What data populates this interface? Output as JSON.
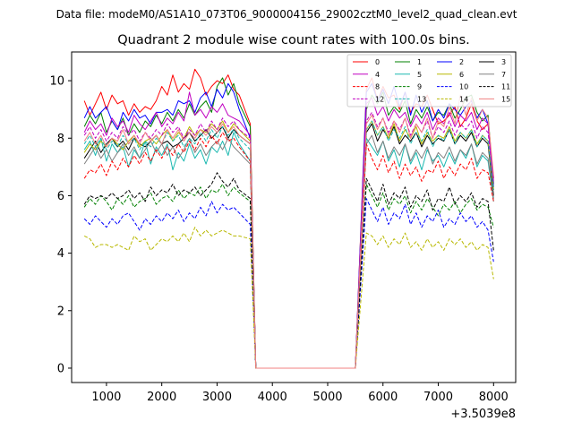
{
  "header": {
    "data_file": "Data file: modeM0/AS1A10_073T06_9000004156_29002cztM0_level2_quad_clean.evt"
  },
  "chart_data": {
    "type": "line",
    "title": "Quadrant 2 module wise count rates with 100.0s bins.",
    "xlabel": "",
    "ylabel": "",
    "x_offset_label": "+3.5039e8",
    "xlim": [
      370,
      8400
    ],
    "ylim": [
      -0.5,
      11.0
    ],
    "xticks": [
      1000,
      2000,
      3000,
      4000,
      5000,
      6000,
      7000,
      8000
    ],
    "yticks": [
      0,
      2,
      4,
      6,
      8,
      10
    ],
    "grid": false,
    "legend": {
      "placement": "top-right",
      "columns": 4
    },
    "gap": {
      "start": 3600,
      "end": 5500
    },
    "x_first": [
      600,
      700,
      800,
      900,
      1000,
      1100,
      1200,
      1300,
      1400,
      1500,
      1600,
      1700,
      1800,
      1900,
      2000,
      2100,
      2200,
      2300,
      2400,
      2500,
      2600,
      2700,
      2800,
      2900,
      3000,
      3100,
      3200,
      3300,
      3400
    ],
    "x_second": [
      5700,
      5800,
      5900,
      6000,
      6100,
      6200,
      6300,
      6400,
      6500,
      6600,
      6700,
      6800,
      6900,
      7000,
      7100,
      7200,
      7300,
      7400,
      7500,
      7600,
      7700,
      7800,
      7900,
      8000
    ],
    "series": [
      {
        "name": "0",
        "color": "#ff0000",
        "dash": false,
        "first": [
          9.3,
          8.8,
          9.2,
          9.6,
          9.0,
          9.5,
          9.2,
          9.3,
          8.8,
          9.2,
          8.9,
          9.1,
          9.0,
          9.3,
          9.8,
          9.5,
          10.2,
          9.6,
          9.9,
          9.7,
          10.4,
          10.1,
          9.5,
          9.8,
          10.0,
          9.9,
          10.2,
          9.7,
          9.5
        ],
        "last": 8.5,
        "second": [
          9.7,
          10.1,
          9.3,
          9.8,
          9.4,
          9.5,
          9.0,
          9.6,
          8.9,
          9.2,
          9.1,
          9.5,
          9.0,
          8.5,
          8.6,
          8.8,
          9.1,
          8.4,
          8.7,
          9.2,
          8.6,
          8.3,
          8.5,
          6.6
        ]
      },
      {
        "name": "1",
        "color": "#008000",
        "dash": false,
        "first": [
          8.4,
          8.8,
          8.5,
          8.9,
          8.2,
          8.6,
          8.3,
          8.7,
          8.1,
          8.5,
          8.2,
          8.6,
          8.4,
          8.8,
          8.5,
          8.9,
          8.6,
          9.0,
          8.7,
          9.2,
          8.8,
          9.1,
          9.3,
          8.9,
          9.8,
          10.1,
          9.5,
          9.9,
          9.2
        ],
        "last": 8.4,
        "second": [
          9.0,
          9.5,
          9.2,
          9.6,
          8.8,
          9.1,
          8.9,
          9.3,
          8.5,
          9.0,
          8.7,
          9.1,
          8.6,
          8.9,
          8.8,
          9.2,
          8.7,
          9.0,
          9.4,
          9.5,
          8.9,
          8.6,
          8.8,
          6.4
        ]
      },
      {
        "name": "2",
        "color": "#0000ff",
        "dash": false,
        "first": [
          8.7,
          9.1,
          8.7,
          8.9,
          9.1,
          8.6,
          8.3,
          8.9,
          8.6,
          9.0,
          8.7,
          8.8,
          8.5,
          8.9,
          8.9,
          9.0,
          8.8,
          9.3,
          9.2,
          9.3,
          8.9,
          9.4,
          9.6,
          9.1,
          9.7,
          9.4,
          9.9,
          9.6,
          9.0
        ],
        "last": 8.0,
        "second": [
          9.6,
          9.9,
          9.3,
          9.7,
          9.2,
          9.8,
          9.1,
          9.6,
          8.8,
          9.5,
          8.9,
          9.3,
          8.6,
          9.0,
          8.7,
          9.2,
          9.0,
          8.8,
          9.1,
          9.3,
          8.7,
          9.0,
          8.5,
          6.3
        ]
      },
      {
        "name": "3",
        "color": "#000000",
        "dash": false,
        "first": [
          7.3,
          7.6,
          7.9,
          7.5,
          7.8,
          8.0,
          7.7,
          7.9,
          7.6,
          8.0,
          7.8,
          7.7,
          7.9,
          8.1,
          7.8,
          7.9,
          7.7,
          7.8,
          8.0,
          8.2,
          7.9,
          8.1,
          8.3,
          8.0,
          8.2,
          8.4,
          8.0,
          8.3,
          8.1
        ],
        "last": 7.8,
        "second": [
          8.2,
          8.5,
          7.9,
          8.3,
          8.0,
          8.4,
          7.8,
          8.1,
          7.9,
          8.2,
          7.7,
          8.1,
          7.8,
          8.0,
          7.9,
          8.3,
          7.8,
          8.1,
          7.9,
          8.2,
          7.7,
          8.0,
          7.8,
          6.0
        ]
      },
      {
        "name": "4",
        "color": "#c000c0",
        "dash": false,
        "first": [
          8.2,
          8.6,
          8.3,
          8.5,
          8.1,
          8.7,
          8.4,
          8.6,
          8.2,
          8.8,
          8.5,
          8.3,
          8.6,
          8.9,
          8.4,
          8.7,
          8.5,
          8.9,
          8.6,
          9.6,
          8.8,
          9.0,
          8.7,
          9.1,
          8.9,
          9.2,
          8.8,
          8.7,
          8.6
        ],
        "last": 8.1,
        "second": [
          9.2,
          9.4,
          8.8,
          9.1,
          8.6,
          9.0,
          8.7,
          8.9,
          8.4,
          8.8,
          8.5,
          8.9,
          8.3,
          8.7,
          8.5,
          8.9,
          8.4,
          8.8,
          8.6,
          8.9,
          8.3,
          8.7,
          8.5,
          6.5
        ]
      },
      {
        "name": "5",
        "color": "#1ab8b0",
        "dash": false,
        "first": [
          7.6,
          7.9,
          7.4,
          8.0,
          7.2,
          7.8,
          7.5,
          7.7,
          7.0,
          7.6,
          7.3,
          7.9,
          7.1,
          7.7,
          7.4,
          7.8,
          6.9,
          7.5,
          7.2,
          7.8,
          7.3,
          7.6,
          7.1,
          7.7,
          7.5,
          7.9,
          7.4,
          8.2,
          7.8
        ],
        "last": 7.2,
        "second": [
          8.0,
          7.7,
          7.4,
          7.9,
          7.2,
          7.6,
          7.0,
          7.8,
          7.1,
          7.5,
          6.9,
          7.6,
          7.2,
          7.4,
          7.0,
          7.5,
          7.1,
          7.6,
          7.3,
          7.8,
          7.0,
          7.4,
          7.2,
          5.8
        ]
      },
      {
        "name": "6",
        "color": "#b8b800",
        "dash": false,
        "first": [
          7.5,
          7.8,
          7.6,
          7.9,
          7.7,
          8.0,
          7.8,
          7.6,
          7.9,
          8.1,
          7.7,
          7.9,
          8.0,
          7.8,
          8.1,
          8.3,
          7.9,
          8.2,
          8.0,
          8.4,
          8.1,
          8.3,
          8.2,
          8.5,
          8.3,
          8.6,
          8.2,
          8.5,
          8.3
        ],
        "last": 7.9,
        "second": [
          8.3,
          8.6,
          8.1,
          8.4,
          8.0,
          8.5,
          7.9,
          8.3,
          8.0,
          8.4,
          7.8,
          8.2,
          7.9,
          8.1,
          8.0,
          8.4,
          7.9,
          8.2,
          8.0,
          8.3,
          7.8,
          8.1,
          7.9,
          6.2
        ]
      },
      {
        "name": "7",
        "color": "#808080",
        "dash": false,
        "first": [
          7.1,
          7.4,
          7.7,
          7.3,
          7.6,
          7.2,
          7.5,
          7.8,
          7.4,
          7.7,
          7.3,
          7.6,
          7.9,
          7.5,
          7.8,
          7.4,
          7.7,
          7.3,
          7.6,
          8.0,
          7.5,
          7.8,
          7.4,
          7.7,
          7.9,
          7.6,
          8.0,
          7.7,
          7.5
        ],
        "last": 7.1,
        "second": [
          7.8,
          8.1,
          7.5,
          7.9,
          7.3,
          7.7,
          7.4,
          7.8,
          7.2,
          7.6,
          7.3,
          7.7,
          7.1,
          7.5,
          7.3,
          7.7,
          7.2,
          7.6,
          7.4,
          7.8,
          7.1,
          7.5,
          7.3,
          5.9
        ]
      },
      {
        "name": "8",
        "color": "#ff0000",
        "dash": true,
        "first": [
          6.6,
          6.9,
          6.8,
          7.1,
          6.7,
          7.2,
          6.9,
          7.3,
          7.0,
          7.4,
          7.1,
          7.5,
          7.2,
          7.6,
          7.3,
          7.7,
          7.4,
          7.8,
          7.5,
          7.9,
          7.6,
          8.0,
          7.7,
          8.1,
          7.8,
          8.2,
          7.9,
          8.0,
          7.7
        ],
        "last": 7.2,
        "second": [
          7.8,
          7.3,
          6.9,
          7.4,
          6.8,
          7.2,
          6.6,
          7.1,
          6.7,
          7.0,
          6.5,
          6.9,
          6.8,
          7.2,
          6.6,
          7.0,
          6.7,
          7.1,
          6.9,
          7.3,
          6.6,
          6.9,
          6.8,
          5.8
        ]
      },
      {
        "name": "9",
        "color": "#008000",
        "dash": true,
        "first": [
          5.6,
          5.9,
          5.7,
          6.0,
          5.8,
          5.5,
          5.9,
          5.7,
          6.0,
          5.6,
          5.8,
          5.9,
          6.1,
          5.7,
          5.9,
          6.0,
          5.8,
          6.2,
          5.9,
          6.1,
          6.0,
          6.3,
          5.9,
          6.2,
          6.1,
          6.4,
          6.0,
          6.3,
          6.1
        ],
        "last": 5.8,
        "second": [
          6.4,
          6.0,
          5.6,
          6.1,
          5.5,
          5.9,
          5.7,
          6.0,
          5.4,
          5.8,
          5.5,
          5.9,
          5.6,
          5.3,
          5.7,
          5.5,
          5.8,
          5.4,
          5.7,
          5.9,
          5.5,
          5.7,
          5.6,
          4.9
        ]
      },
      {
        "name": "10",
        "color": "#0000ff",
        "dash": true,
        "first": [
          5.2,
          5.0,
          5.3,
          5.1,
          4.9,
          5.2,
          5.0,
          5.3,
          5.4,
          5.1,
          4.8,
          5.2,
          5.0,
          5.3,
          5.1,
          5.4,
          5.2,
          5.5,
          5.1,
          5.4,
          5.2,
          5.6,
          5.3,
          5.8,
          5.4,
          5.7,
          5.5,
          5.6,
          5.4
        ],
        "last": 5.0,
        "second": [
          5.9,
          5.5,
          5.1,
          5.6,
          5.0,
          5.4,
          5.2,
          5.7,
          5.0,
          5.4,
          4.9,
          5.3,
          5.1,
          5.5,
          4.9,
          5.2,
          5.0,
          5.4,
          5.1,
          5.3,
          4.9,
          5.1,
          4.8,
          3.7
        ]
      },
      {
        "name": "11",
        "color": "#000000",
        "dash": true,
        "first": [
          5.7,
          6.0,
          5.9,
          6.0,
          5.9,
          6.1,
          5.9,
          6.0,
          6.2,
          5.9,
          6.1,
          5.8,
          6.3,
          6.0,
          6.2,
          6.1,
          6.4,
          6.0,
          6.2,
          6.1,
          6.3,
          6.0,
          6.2,
          6.4,
          6.8,
          6.5,
          6.3,
          6.6,
          6.2
        ],
        "last": 5.9,
        "second": [
          6.6,
          6.2,
          5.8,
          6.4,
          5.7,
          6.1,
          5.9,
          6.3,
          5.6,
          6.0,
          5.8,
          6.2,
          5.5,
          5.9,
          5.8,
          6.3,
          5.7,
          6.0,
          5.8,
          6.1,
          5.6,
          5.9,
          5.8,
          4.1
        ]
      },
      {
        "name": "12",
        "color": "#c000c0",
        "dash": true,
        "first": [
          8.1,
          8.4,
          8.0,
          8.3,
          7.9,
          8.2,
          8.0,
          8.4,
          8.1,
          8.3,
          7.9,
          8.2,
          8.0,
          8.3,
          8.1,
          8.5,
          8.2,
          8.4,
          8.0,
          8.3,
          8.1,
          8.5,
          8.2,
          8.6,
          8.3,
          8.7,
          8.4,
          8.6,
          8.3
        ],
        "last": 8.0,
        "second": [
          8.6,
          8.9,
          8.4,
          8.7,
          8.2,
          8.6,
          8.3,
          8.7,
          8.1,
          8.5,
          8.2,
          8.6,
          8.0,
          8.4,
          8.2,
          8.6,
          8.1,
          8.5,
          8.3,
          8.6,
          8.0,
          8.4,
          8.2,
          6.4
        ]
      },
      {
        "name": "13",
        "color": "#1ab8b0",
        "dash": true,
        "first": [
          7.8,
          8.1,
          7.7,
          8.0,
          7.6,
          7.9,
          7.7,
          8.1,
          7.8,
          8.0,
          7.6,
          7.9,
          7.7,
          8.0,
          7.8,
          8.2,
          7.9,
          8.1,
          7.7,
          8.0,
          7.8,
          8.2,
          7.9,
          8.3,
          8.0,
          8.4,
          8.1,
          8.3,
          8.0
        ],
        "last": 7.6,
        "second": [
          8.3,
          8.6,
          8.1,
          8.4,
          7.9,
          8.3,
          8.0,
          8.4,
          7.8,
          8.2,
          7.9,
          8.3,
          7.7,
          8.1,
          7.9,
          8.3,
          7.8,
          8.2,
          8.0,
          8.3,
          7.7,
          8.1,
          7.9,
          6.2
        ]
      },
      {
        "name": "14",
        "color": "#b8b800",
        "dash": true,
        "first": [
          4.6,
          4.5,
          4.2,
          4.3,
          4.3,
          4.2,
          4.3,
          4.2,
          4.1,
          4.6,
          4.4,
          4.5,
          4.1,
          4.3,
          4.5,
          4.4,
          4.6,
          4.4,
          4.7,
          4.4,
          4.9,
          4.6,
          4.8,
          4.6,
          4.7,
          4.8,
          4.7,
          4.6,
          4.6
        ],
        "last": 4.5,
        "second": [
          4.7,
          4.6,
          4.3,
          4.6,
          4.2,
          4.5,
          4.3,
          4.7,
          4.2,
          4.4,
          4.1,
          4.5,
          4.2,
          4.4,
          4.1,
          4.5,
          4.3,
          4.5,
          4.2,
          4.4,
          4.1,
          4.3,
          4.2,
          3.1
        ]
      },
      {
        "name": "15",
        "color": "#f08080",
        "dash": false,
        "first": [
          7.9,
          8.2,
          7.8,
          8.1,
          7.7,
          8.0,
          7.9,
          8.3,
          7.8,
          8.1,
          7.8,
          8.2,
          7.9,
          8.1,
          7.8,
          8.3,
          8.0,
          8.3,
          7.9,
          8.2,
          8.0,
          8.3,
          8.1,
          8.4,
          8.2,
          8.5,
          8.2,
          8.4,
          8.1
        ],
        "last": 7.8,
        "second": [
          8.5,
          8.8,
          8.3,
          8.7,
          8.1,
          8.6,
          8.2,
          8.7,
          8.0,
          8.5,
          8.2,
          8.7,
          8.0,
          8.6,
          8.4,
          9.1,
          8.5,
          9.5,
          8.8,
          9.4,
          8.6,
          9.0,
          8.7,
          6.7
        ]
      }
    ]
  }
}
